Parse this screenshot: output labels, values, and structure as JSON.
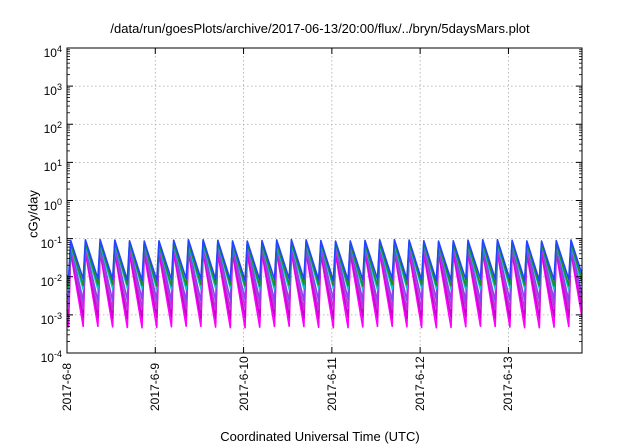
{
  "chart_data": {
    "type": "line",
    "title": "/data/run/goesPlots/archive/2017-06-13/20:00/flux/../bryn/5daysMars.plot",
    "xlabel": "Coordinated Universal Time (UTC)",
    "ylabel": "cGy/day",
    "yscale": "log",
    "ylim": [
      0.0001,
      10000
    ],
    "xlim": [
      "2017-06-08T00:00",
      "2017-06-13T20:00"
    ],
    "grid": true,
    "legend": "none",
    "xticks": [
      "2017-6-8",
      "2017-6-9",
      "2017-6-10",
      "2017-6-11",
      "2017-6-12",
      "2017-6-13"
    ],
    "yticks": [
      {
        "value": 0.0001,
        "base": "10",
        "exp": "-4"
      },
      {
        "value": 0.001,
        "base": "10",
        "exp": "-3"
      },
      {
        "value": 0.01,
        "base": "10",
        "exp": "-2"
      },
      {
        "value": 0.1,
        "base": "10",
        "exp": "-1"
      },
      {
        "value": 1,
        "base": "10",
        "exp": "0"
      },
      {
        "value": 10,
        "base": "10",
        "exp": "1"
      },
      {
        "value": 100,
        "base": "10",
        "exp": "2"
      },
      {
        "value": 1000,
        "base": "10",
        "exp": "3"
      },
      {
        "value": 10000,
        "base": "10",
        "exp": "4"
      }
    ],
    "oscillation": {
      "cycles_per_day": 6,
      "first_peak": "2017-06-08T01:00"
    },
    "series": [
      {
        "color": "#ff00ff",
        "peak": 0.035,
        "trough": 0.0004
      },
      {
        "color": "#cc00cc",
        "peak": 0.04,
        "trough": 0.0007
      },
      {
        "color": "#bb33dd",
        "peak": 0.045,
        "trough": 0.0012
      },
      {
        "color": "#8844ee",
        "peak": 0.055,
        "trough": 0.002
      },
      {
        "color": "#00cccc",
        "peak": 0.06,
        "trough": 0.004
      },
      {
        "color": "#228b22",
        "peak": 0.065,
        "trough": 0.005
      },
      {
        "color": "#2244ff",
        "peak": 0.075,
        "trough": 0.007
      }
    ]
  }
}
